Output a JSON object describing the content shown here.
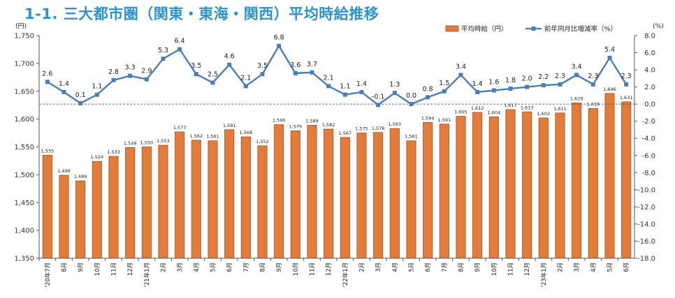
{
  "title": "1-1.  三大都市圏（関東・東海・関西）平均時給推移",
  "chart_data": {
    "type": "bar+line",
    "categories": [
      "'20年7月",
      "8月",
      "9月",
      "10月",
      "11月",
      "12月",
      "'21年1月",
      "2月",
      "3月",
      "4月",
      "5月",
      "6月",
      "7月",
      "8月",
      "9月",
      "10月",
      "11月",
      "12月",
      "'22年1月",
      "2月",
      "3月",
      "4月",
      "5月",
      "6月",
      "7月",
      "8月",
      "9月",
      "10月",
      "11月",
      "12月",
      "'23年1月",
      "2月",
      "3月",
      "4月",
      "5月",
      "6月"
    ],
    "series": [
      {
        "name": "平均時給（円）",
        "type": "bar",
        "axis": "left",
        "color": "#e07d3c",
        "values": [
          1535,
          1499,
          1489,
          1524,
          1533,
          1549,
          1550,
          1553,
          1577,
          1562,
          1561,
          1581,
          1568,
          1552,
          1590,
          1579,
          1589,
          1582,
          1567,
          1575,
          1576,
          1583,
          1561,
          1594,
          1591,
          1605,
          1612,
          1604,
          1617,
          1613,
          1602,
          1611,
          1629,
          1619,
          1646,
          1631
        ]
      },
      {
        "name": "前年同月比増減率（%）",
        "type": "line",
        "axis": "right",
        "color": "#4a7ebb",
        "values": [
          2.6,
          1.4,
          0.1,
          1.1,
          2.8,
          3.3,
          2.9,
          5.3,
          6.4,
          3.5,
          2.5,
          4.6,
          2.1,
          3.5,
          6.8,
          3.6,
          3.7,
          2.1,
          1.1,
          1.4,
          -0.1,
          1.3,
          0.0,
          0.8,
          1.5,
          3.4,
          1.4,
          1.6,
          1.8,
          2.0,
          2.2,
          2.3,
          3.4,
          2.3,
          5.4,
          2.3
        ]
      }
    ],
    "bar_labels": [
      "1,535",
      "1,499",
      "1,489",
      "1,524",
      "1,533",
      "1,549",
      "1,550",
      "1,553",
      "1,577",
      "1,562",
      "1,561",
      "1,581",
      "1,568",
      "1,552",
      "1,590",
      "1,579",
      "1,589",
      "1,582",
      "1,567",
      "1,575",
      "1,576",
      "1,583",
      "1,561",
      "1,594",
      "1,591",
      "1,605",
      "1,612",
      "1,604",
      "1,617",
      "1,613",
      "1,602",
      "1,611",
      "1,629",
      "1,619",
      "1,646",
      "1,631"
    ],
    "line_labels": [
      "2.6",
      "1.4",
      "0.1",
      "1.1",
      "2.8",
      "3.3",
      "2.9",
      "5.3",
      "6.4",
      "3.5",
      "2.5",
      "4.6",
      "2.1",
      "3.5",
      "6.8",
      "3.6",
      "3.7",
      "2.1",
      "1.1",
      "1.4",
      "-0.1",
      "1.3",
      "0.0",
      "0.8",
      "1.5",
      "3.4",
      "1.4",
      "1.6",
      "1.8",
      "2.0",
      "2.2",
      "2.3",
      "3.4",
      "2.3",
      "5.4",
      "2.3"
    ],
    "left_axis": {
      "unit": "(円)",
      "ylim": [
        1350,
        1750
      ],
      "ticks": [
        1750,
        1700,
        1650,
        1600,
        1550,
        1500,
        1450,
        1400,
        1350
      ],
      "tick_labels": [
        "1,750",
        "1,700",
        "1,650",
        "1,600",
        "1,550",
        "1,500",
        "1,450",
        "1,400",
        "1,350"
      ]
    },
    "right_axis": {
      "unit": "(%)",
      "ylim": [
        -18,
        8
      ],
      "ticks": [
        8,
        6,
        4,
        2,
        0,
        -2,
        -4,
        -6,
        -8,
        -10,
        -12,
        -14,
        -16,
        -18
      ],
      "tick_labels": [
        "8.0",
        "6.0",
        "4.0",
        "2.0",
        "0.0",
        "-2.0",
        "-4.0",
        "-6.0",
        "-8.0",
        "-10.0",
        "-12.0",
        "-14.0",
        "-16.0",
        "-18.0"
      ]
    },
    "zero_line": "dashed",
    "grid": false,
    "legend_position": "top-right"
  }
}
